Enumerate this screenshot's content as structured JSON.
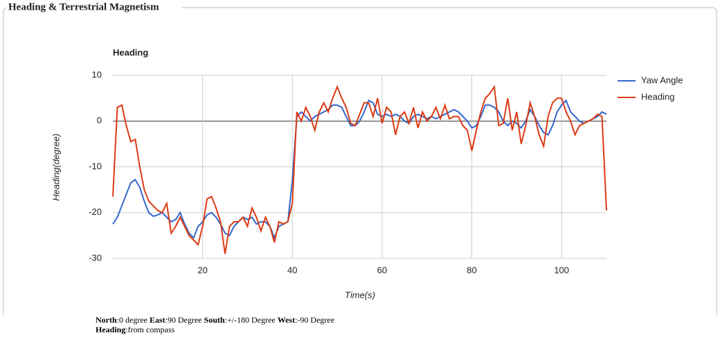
{
  "panel_title": "Heading & Terrestrial Magnetism",
  "chart_data": {
    "type": "line",
    "title": "Heading",
    "x_label": "Time(s)",
    "y_label": "Heading(degree)",
    "x": [
      0,
      1,
      2,
      3,
      4,
      5,
      6,
      7,
      8,
      9,
      10,
      11,
      12,
      13,
      14,
      15,
      16,
      17,
      18,
      19,
      20,
      21,
      22,
      23,
      24,
      25,
      26,
      27,
      28,
      29,
      30,
      31,
      32,
      33,
      34,
      35,
      36,
      37,
      38,
      39,
      40,
      41,
      42,
      43,
      44,
      45,
      46,
      47,
      48,
      49,
      50,
      51,
      52,
      53,
      54,
      55,
      56,
      57,
      58,
      59,
      60,
      61,
      62,
      63,
      64,
      65,
      66,
      67,
      68,
      69,
      70,
      71,
      72,
      73,
      74,
      75,
      76,
      77,
      78,
      79,
      80,
      81,
      82,
      83,
      84,
      85,
      86,
      87,
      88,
      89,
      90,
      91,
      92,
      93,
      94,
      95,
      96,
      97,
      98,
      99,
      100,
      101,
      102,
      103,
      104,
      105,
      106,
      107,
      108,
      109,
      110
    ],
    "series": [
      {
        "name": "Yaw Angle",
        "color": "#3366cc",
        "values": [
          -22.5,
          -21,
          -18.5,
          -16,
          -13.5,
          -12.8,
          -14.5,
          -17.5,
          -20,
          -20.8,
          -20.5,
          -20,
          -21,
          -22,
          -21.5,
          -20,
          -22.5,
          -24.5,
          -25.5,
          -23,
          -22,
          -20.5,
          -20,
          -21,
          -22.5,
          -24.5,
          -25,
          -23,
          -22,
          -21,
          -21.5,
          -21,
          -22.5,
          -22,
          -22,
          -23,
          -25.5,
          -23,
          -22.5,
          -22,
          -13,
          1,
          2,
          1,
          0,
          1,
          1.5,
          2,
          2.5,
          3.5,
          3.5,
          3,
          1,
          -1,
          -1,
          0,
          2,
          4.5,
          4,
          1.5,
          1,
          1.5,
          1,
          1.5,
          1,
          0,
          -0.5,
          1,
          1.5,
          1,
          0.5,
          1,
          0.5,
          1,
          1.5,
          2,
          2.5,
          2,
          1,
          0,
          -1.5,
          -1,
          1,
          3.5,
          3.5,
          3,
          2,
          0,
          -1,
          0,
          -0.5,
          -1.5,
          0,
          2.5,
          1,
          -1,
          -2.5,
          -3,
          -1,
          2,
          3.5,
          4.5,
          2,
          1,
          0,
          -0.5,
          0,
          0.5,
          1,
          2,
          1.5
        ]
      },
      {
        "name": "Heading",
        "color": "#dc3912",
        "values": [
          -16.5,
          3,
          3.5,
          -1,
          -4.5,
          -4,
          -10,
          -15,
          -17.5,
          -18.5,
          -19.5,
          -20,
          -18,
          -24.5,
          -23,
          -21,
          -23,
          -25,
          -26,
          -27,
          -23,
          -17,
          -16.5,
          -19,
          -22,
          -29,
          -23,
          -22,
          -22,
          -21,
          -23,
          -19,
          -21,
          -24,
          -21,
          -23,
          -26.5,
          -22,
          -22.5,
          -22,
          -18,
          2,
          0,
          3,
          1,
          -2,
          2,
          4,
          2,
          5,
          7.5,
          5,
          3,
          -0.5,
          -1,
          1.5,
          4,
          4,
          1,
          5,
          -0.5,
          3,
          2,
          -3,
          1,
          2,
          -0.5,
          3,
          -1.5,
          2,
          0,
          1,
          3,
          0.5,
          3.5,
          0.5,
          1,
          1,
          -1,
          -2,
          -6.5,
          -2,
          2,
          5,
          6,
          7.5,
          -1,
          -0.5,
          5,
          -2,
          2,
          -5,
          -1,
          4,
          1,
          -3,
          -5.5,
          1,
          4,
          5,
          5,
          2,
          0,
          -3,
          -1,
          -0.5,
          0,
          0.5,
          1.5,
          1,
          -19.5
        ]
      }
    ],
    "xlim": [
      0,
      110
    ],
    "xticks": [
      20,
      40,
      60,
      80,
      100
    ],
    "ylim": [
      -30,
      10
    ],
    "yticks": [
      -30,
      -20,
      -10,
      0,
      10
    ],
    "grid": true,
    "legend": "right"
  },
  "notes": [
    {
      "label": "North",
      "text": ":0 degree"
    },
    {
      "label": "East",
      "text": ":90 Degree"
    },
    {
      "label": "South",
      "text": ":+/-180 Degree"
    },
    {
      "label": "West",
      "text": ":-90 Degree"
    }
  ],
  "heading_note": {
    "label": "Heading",
    "text": ":from compass"
  }
}
